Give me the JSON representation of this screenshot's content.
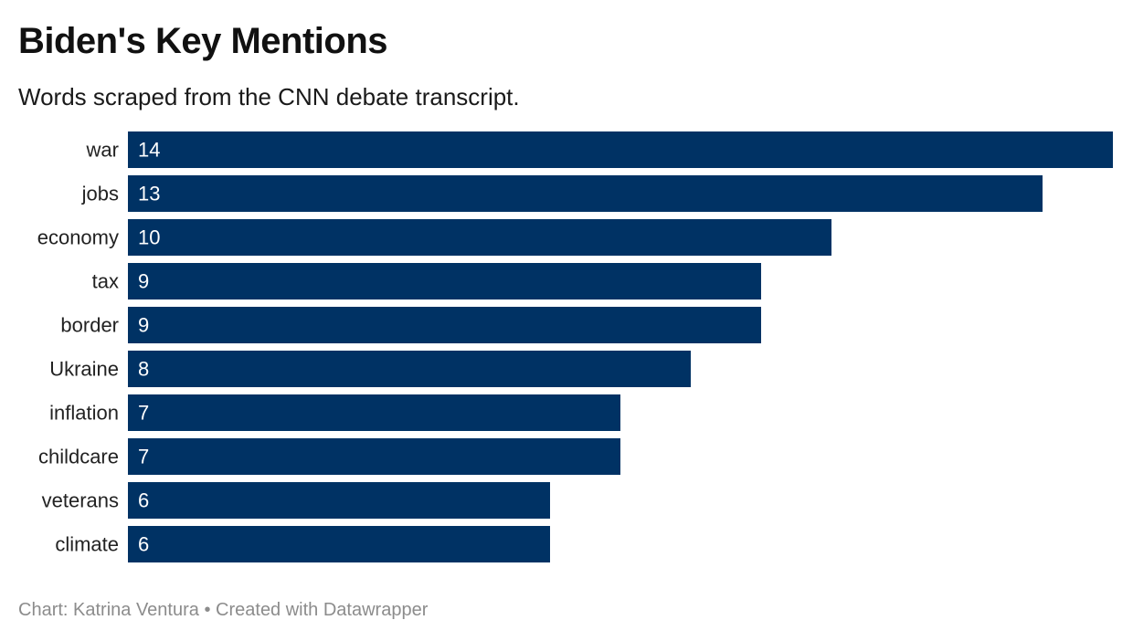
{
  "chart_data": {
    "type": "bar",
    "orientation": "horizontal",
    "title": "Biden's Key Mentions",
    "subtitle": "Words scraped from the CNN debate transcript.",
    "categories": [
      "war",
      "jobs",
      "economy",
      "tax",
      "border",
      "Ukraine",
      "inflation",
      "childcare",
      "veterans",
      "climate"
    ],
    "values": [
      14,
      13,
      10,
      9,
      9,
      8,
      7,
      7,
      6,
      6
    ],
    "xlim": [
      0,
      14
    ],
    "bar_color": "#003264",
    "value_label_color": "#ffffff",
    "grid": false,
    "legend": "none"
  },
  "footer": {
    "credit": "Chart: Katrina Ventura",
    "separator": "•",
    "tool": "Created with Datawrapper"
  }
}
